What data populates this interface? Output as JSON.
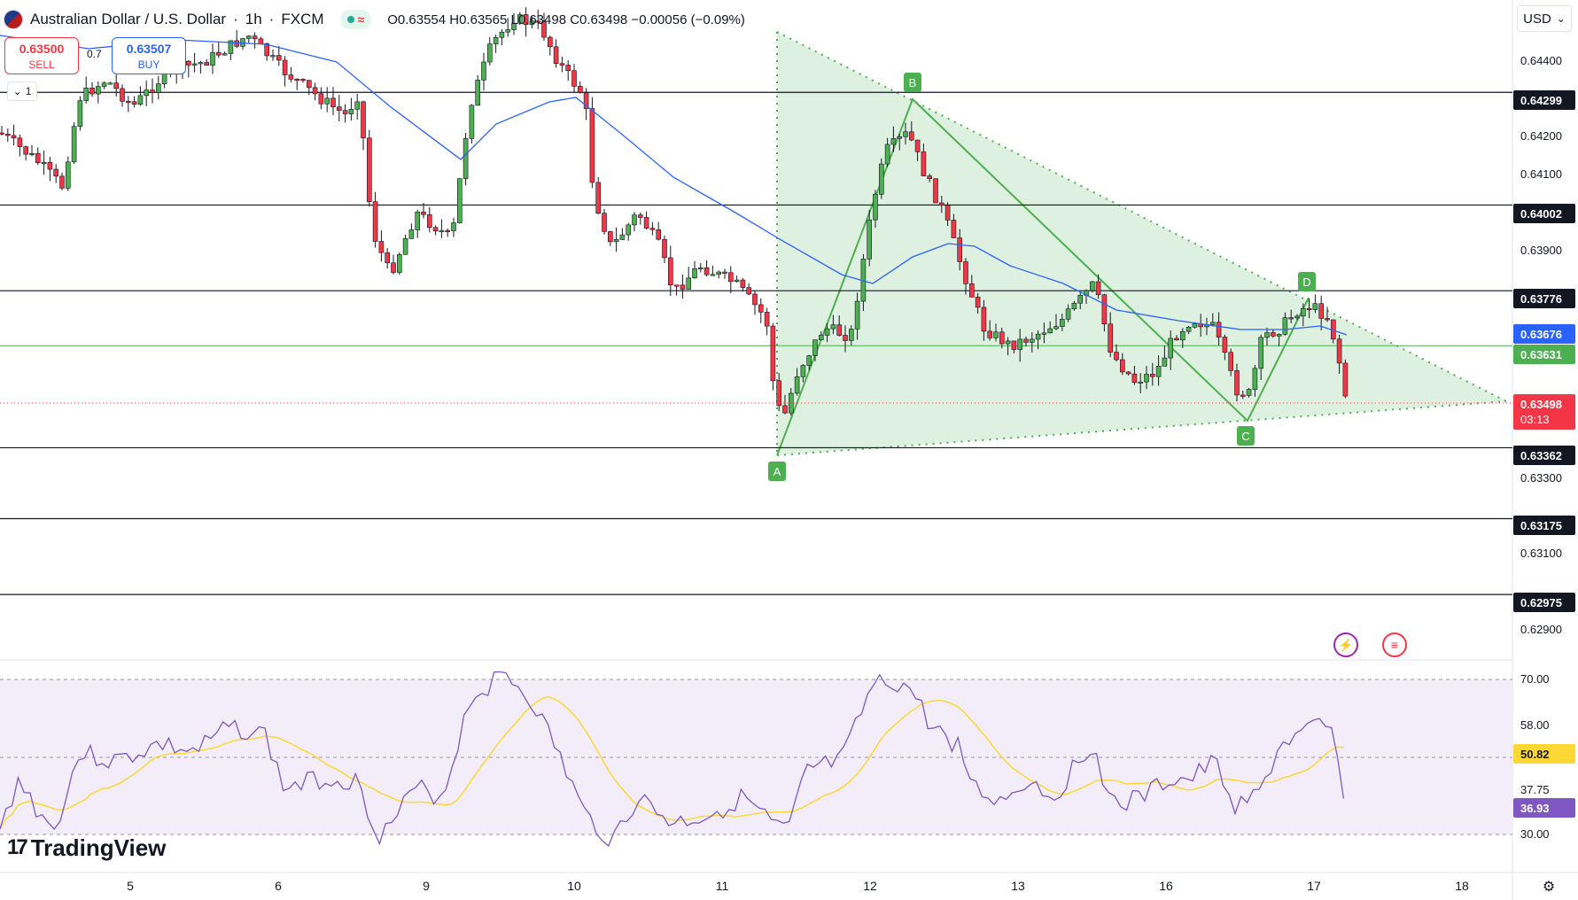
{
  "header": {
    "symbol_name": "Australian Dollar / U.S. Dollar",
    "interval": "1h",
    "exchange": "FXCM",
    "ohlc_text": "O0.63554 H0.63565 L0.63498 C0.63498 −0.00056 (−0.09%)",
    "status_icon": "market-open-dot",
    "delay_icon": "approx-wave-icon"
  },
  "trade": {
    "sell_price": "0.63500",
    "sell_label": "SELL",
    "buy_price": "0.63507",
    "buy_label": "BUY",
    "spread": "0.7"
  },
  "collapse_button": {
    "label": "1"
  },
  "axis": {
    "currency": "USD",
    "price_ticks": [
      "0.64400",
      "0.64200",
      "0.64100",
      "0.63900",
      "0.63300",
      "0.63100",
      "0.62900"
    ],
    "rsi_ticks": [
      "70.00",
      "58.00",
      "37.75",
      "30.00"
    ],
    "time_ticks": [
      "5",
      "6",
      "9",
      "10",
      "11",
      "12",
      "13",
      "16",
      "17",
      "18"
    ]
  },
  "price_tags": {
    "level_64299": "0.64299",
    "level_64002": "0.64002",
    "level_63776": "0.63776",
    "ma_value": "0.63676",
    "level_63631": "0.63631",
    "last_price": "0.63498",
    "countdown": "03:13",
    "level_63362": "0.63362",
    "level_63175": "0.63175",
    "level_62975": "0.62975"
  },
  "rsi": {
    "rsi_ma_value": "50.82",
    "rsi_value": "36.93"
  },
  "pattern_labels": {
    "a": "A",
    "b": "B",
    "c": "C",
    "d": "D"
  },
  "branding": {
    "logo_text": "TradingView"
  },
  "colors": {
    "bull": "#4caf50",
    "bear": "#f23645",
    "ma_line": "#2962ff",
    "pattern_fill": "#c8e6c9",
    "pattern_line": "#4caf50",
    "rsi_line": "#7e57c2",
    "rsi_ma": "#fdd835",
    "rsi_band": "#ede7f6"
  },
  "chart_data": {
    "type": "candlestick",
    "symbol": "AUDUSD",
    "interval": "1h",
    "horizontal_levels": [
      0.64299,
      0.64002,
      0.63776,
      0.63631,
      0.63362,
      0.63175,
      0.62975
    ],
    "last_price": 0.63498,
    "ma_last": 0.63676,
    "pattern_points": [
      {
        "label": "A",
        "price": 0.6336
      },
      {
        "label": "B",
        "price": 0.643
      },
      {
        "label": "C",
        "price": 0.6345
      },
      {
        "label": "D",
        "price": 0.6378
      }
    ],
    "rsi_last": 36.93,
    "rsi_ma_last": 50.82,
    "rsi_bands": [
      70,
      50,
      30
    ]
  }
}
